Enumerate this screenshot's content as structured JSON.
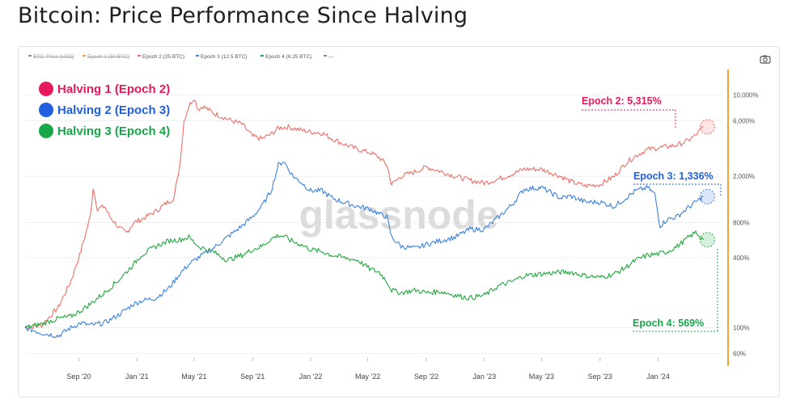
{
  "title": "Bitcoin: Price Performance Since Halving",
  "watermark": "glassnode",
  "camera_icon": "camera-icon",
  "legend_top": [
    {
      "label": "BTC: Price [USD]",
      "color": "#888888",
      "struck": true
    },
    {
      "label": "Epoch 1 (50 BTC)",
      "color": "#f2a33a",
      "struck": true
    },
    {
      "label": "Epoch 2 (25 BTC)",
      "color": "#ee6e67",
      "struck": false
    },
    {
      "label": "Epoch 3 (12.5 BTC)",
      "color": "#3b82e0",
      "struck": false
    },
    {
      "label": "Epoch 4 (6.25 BTC)",
      "color": "#22a840",
      "struck": false
    },
    {
      "label": "---",
      "color": "#888888",
      "struck": false
    }
  ],
  "legend_main": [
    {
      "label": "Halving 1 (Epoch 2)",
      "color": "#e5195b"
    },
    {
      "label": "Halving 2 (Epoch 3)",
      "color": "#1f5fe0"
    },
    {
      "label": "Halving 3 (Epoch 4)",
      "color": "#18a84a"
    }
  ],
  "callouts": [
    {
      "label": "Epoch 2: 5,315%",
      "color": "#e5195b"
    },
    {
      "label": "Epoch 3: 1,336%",
      "color": "#1f5fe0"
    },
    {
      "label": "Epoch 4: 569%",
      "color": "#18a84a"
    }
  ],
  "chart_data": {
    "type": "line",
    "title": "Bitcoin: Price Performance Since Halving",
    "y_scale": "log",
    "y_ticks": [
      "10,000%",
      "6,000%",
      "2,000%",
      "800%",
      "400%",
      "100%",
      "60%"
    ],
    "y_tick_values": [
      10000,
      6000,
      2000,
      800,
      400,
      100,
      60
    ],
    "x_ticks": [
      "Sep '20",
      "Jan '21",
      "May '21",
      "Sep '21",
      "Jan '22",
      "May '22",
      "Sep '22",
      "Jan '23",
      "May '23",
      "Sep '23",
      "Jan '24"
    ],
    "x_tick_values": [
      "2020-09-01",
      "2021-01-01",
      "2021-05-01",
      "2021-09-01",
      "2022-01-01",
      "2022-05-01",
      "2022-09-01",
      "2023-01-01",
      "2023-05-01",
      "2023-09-01",
      "2024-01-01"
    ],
    "x_range": [
      "2020-05-11",
      "2024-05-15"
    ],
    "ylim": [
      55,
      16000
    ],
    "series": [
      {
        "name": "Epoch 2 (25 BTC)",
        "color": "#ee6e67",
        "points": [
          [
            "2020-05-11",
            100
          ],
          [
            "2020-06-15",
            105
          ],
          [
            "2020-07-20",
            150
          ],
          [
            "2020-08-15",
            250
          ],
          [
            "2020-09-05",
            450
          ],
          [
            "2020-09-25",
            900
          ],
          [
            "2020-10-01",
            1600
          ],
          [
            "2020-10-10",
            1050
          ],
          [
            "2020-10-25",
            1100
          ],
          [
            "2020-11-05",
            900
          ],
          [
            "2020-11-25",
            720
          ],
          [
            "2020-12-10",
            650
          ],
          [
            "2020-12-25",
            800
          ],
          [
            "2021-01-10",
            850
          ],
          [
            "2021-02-10",
            1000
          ],
          [
            "2021-03-01",
            1150
          ],
          [
            "2021-03-20",
            1300
          ],
          [
            "2021-04-01",
            2500
          ],
          [
            "2021-04-10",
            6000
          ],
          [
            "2021-04-20",
            8000
          ],
          [
            "2021-05-01",
            9500
          ],
          [
            "2021-05-10",
            7500
          ],
          [
            "2021-05-20",
            8000
          ],
          [
            "2021-06-10",
            7000
          ],
          [
            "2021-07-10",
            6200
          ],
          [
            "2021-08-10",
            5600
          ],
          [
            "2021-09-01",
            4400
          ],
          [
            "2021-09-20",
            4200
          ],
          [
            "2021-10-10",
            4600
          ],
          [
            "2021-10-25",
            5200
          ],
          [
            "2021-11-15",
            5300
          ],
          [
            "2021-12-10",
            5000
          ],
          [
            "2022-01-01",
            4800
          ],
          [
            "2022-01-25",
            4700
          ],
          [
            "2022-02-15",
            4200
          ],
          [
            "2022-03-10",
            3800
          ],
          [
            "2022-04-10",
            3400
          ],
          [
            "2022-05-05",
            3200
          ],
          [
            "2022-05-25",
            2900
          ],
          [
            "2022-06-10",
            2500
          ],
          [
            "2022-06-20",
            1700
          ],
          [
            "2022-07-10",
            2000
          ],
          [
            "2022-08-10",
            2200
          ],
          [
            "2022-09-01",
            2400
          ],
          [
            "2022-10-01",
            2200
          ],
          [
            "2022-11-01",
            2000
          ],
          [
            "2022-12-01",
            1850
          ],
          [
            "2023-01-01",
            1750
          ],
          [
            "2023-02-01",
            1900
          ],
          [
            "2023-03-01",
            2100
          ],
          [
            "2023-03-25",
            2300
          ],
          [
            "2023-05-01",
            2300
          ],
          [
            "2023-06-10",
            2000
          ],
          [
            "2023-07-01",
            1800
          ],
          [
            "2023-08-01",
            1650
          ],
          [
            "2023-09-01",
            1700
          ],
          [
            "2023-10-01",
            2000
          ],
          [
            "2023-10-25",
            2600
          ],
          [
            "2023-11-15",
            3000
          ],
          [
            "2023-12-10",
            3400
          ],
          [
            "2024-01-01",
            3500
          ],
          [
            "2024-01-20",
            3600
          ],
          [
            "2024-02-10",
            3700
          ],
          [
            "2024-03-01",
            4000
          ],
          [
            "2024-03-20",
            4500
          ],
          [
            "2024-04-05",
            5315
          ]
        ]
      },
      {
        "name": "Epoch 3 (12.5 BTC)",
        "color": "#3b82e0",
        "points": [
          [
            "2020-05-11",
            100
          ],
          [
            "2020-06-15",
            90
          ],
          [
            "2020-07-20",
            85
          ],
          [
            "2020-08-15",
            100
          ],
          [
            "2020-09-05",
            110
          ],
          [
            "2020-09-25",
            105
          ],
          [
            "2020-10-25",
            110
          ],
          [
            "2020-11-25",
            130
          ],
          [
            "2020-12-25",
            160
          ],
          [
            "2021-01-10",
            170
          ],
          [
            "2021-02-10",
            180
          ],
          [
            "2021-03-10",
            220
          ],
          [
            "2021-04-01",
            290
          ],
          [
            "2021-04-20",
            350
          ],
          [
            "2021-05-10",
            400
          ],
          [
            "2021-06-10",
            480
          ],
          [
            "2021-07-10",
            600
          ],
          [
            "2021-08-10",
            750
          ],
          [
            "2021-09-01",
            900
          ],
          [
            "2021-09-20",
            1100
          ],
          [
            "2021-10-10",
            1500
          ],
          [
            "2021-10-25",
            2500
          ],
          [
            "2021-11-05",
            2700
          ],
          [
            "2021-11-25",
            2000
          ],
          [
            "2021-12-10",
            1800
          ],
          [
            "2022-01-01",
            1500
          ],
          [
            "2022-01-25",
            1500
          ],
          [
            "2022-02-15",
            1300
          ],
          [
            "2022-03-10",
            1200
          ],
          [
            "2022-04-10",
            1100
          ],
          [
            "2022-05-05",
            1050
          ],
          [
            "2022-05-25",
            950
          ],
          [
            "2022-06-10",
            900
          ],
          [
            "2022-06-20",
            600
          ],
          [
            "2022-07-10",
            500
          ],
          [
            "2022-08-10",
            480
          ],
          [
            "2022-09-01",
            520
          ],
          [
            "2022-10-01",
            560
          ],
          [
            "2022-11-01",
            600
          ],
          [
            "2022-12-01",
            700
          ],
          [
            "2023-01-01",
            700
          ],
          [
            "2023-02-01",
            900
          ],
          [
            "2023-03-01",
            1150
          ],
          [
            "2023-03-25",
            1550
          ],
          [
            "2023-05-01",
            1600
          ],
          [
            "2023-06-10",
            1300
          ],
          [
            "2023-07-01",
            1350
          ],
          [
            "2023-08-01",
            1200
          ],
          [
            "2023-09-01",
            1200
          ],
          [
            "2023-10-01",
            1100
          ],
          [
            "2023-10-25",
            1300
          ],
          [
            "2023-11-15",
            1500
          ],
          [
            "2023-12-10",
            1600
          ],
          [
            "2023-12-25",
            1400
          ],
          [
            "2024-01-05",
            750
          ],
          [
            "2024-01-20",
            850
          ],
          [
            "2024-02-10",
            900
          ],
          [
            "2024-03-01",
            1050
          ],
          [
            "2024-03-20",
            1200
          ],
          [
            "2024-04-05",
            1336
          ]
        ]
      },
      {
        "name": "Epoch 4 (6.25 BTC)",
        "color": "#22a840",
        "points": [
          [
            "2020-05-11",
            100
          ],
          [
            "2020-06-15",
            108
          ],
          [
            "2020-07-20",
            120
          ],
          [
            "2020-08-15",
            125
          ],
          [
            "2020-09-05",
            140
          ],
          [
            "2020-09-25",
            160
          ],
          [
            "2020-10-25",
            200
          ],
          [
            "2020-11-25",
            260
          ],
          [
            "2020-12-25",
            350
          ],
          [
            "2021-01-10",
            420
          ],
          [
            "2021-02-10",
            500
          ],
          [
            "2021-03-10",
            560
          ],
          [
            "2021-04-01",
            570
          ],
          [
            "2021-04-20",
            600
          ],
          [
            "2021-05-10",
            500
          ],
          [
            "2021-06-10",
            450
          ],
          [
            "2021-07-10",
            380
          ],
          [
            "2021-08-10",
            420
          ],
          [
            "2021-09-01",
            470
          ],
          [
            "2021-09-20",
            500
          ],
          [
            "2021-10-10",
            580
          ],
          [
            "2021-10-25",
            620
          ],
          [
            "2021-11-05",
            610
          ],
          [
            "2021-11-25",
            550
          ],
          [
            "2021-12-10",
            520
          ],
          [
            "2022-01-01",
            470
          ],
          [
            "2022-01-25",
            450
          ],
          [
            "2022-02-15",
            420
          ],
          [
            "2022-03-10",
            400
          ],
          [
            "2022-04-10",
            380
          ],
          [
            "2022-05-05",
            320
          ],
          [
            "2022-05-25",
            300
          ],
          [
            "2022-06-10",
            250
          ],
          [
            "2022-06-20",
            210
          ],
          [
            "2022-07-10",
            200
          ],
          [
            "2022-08-10",
            210
          ],
          [
            "2022-09-01",
            200
          ],
          [
            "2022-10-01",
            205
          ],
          [
            "2022-11-01",
            190
          ],
          [
            "2022-12-01",
            180
          ],
          [
            "2023-01-01",
            190
          ],
          [
            "2023-02-01",
            230
          ],
          [
            "2023-03-01",
            250
          ],
          [
            "2023-03-25",
            280
          ],
          [
            "2023-05-01",
            290
          ],
          [
            "2023-06-10",
            300
          ],
          [
            "2023-07-01",
            300
          ],
          [
            "2023-08-01",
            280
          ],
          [
            "2023-09-01",
            270
          ],
          [
            "2023-10-01",
            290
          ],
          [
            "2023-10-25",
            330
          ],
          [
            "2023-11-15",
            380
          ],
          [
            "2023-12-10",
            420
          ],
          [
            "2024-01-01",
            430
          ],
          [
            "2024-01-20",
            450
          ],
          [
            "2024-02-10",
            500
          ],
          [
            "2024-03-01",
            580
          ],
          [
            "2024-03-20",
            660
          ],
          [
            "2024-04-05",
            569
          ]
        ]
      }
    ]
  }
}
